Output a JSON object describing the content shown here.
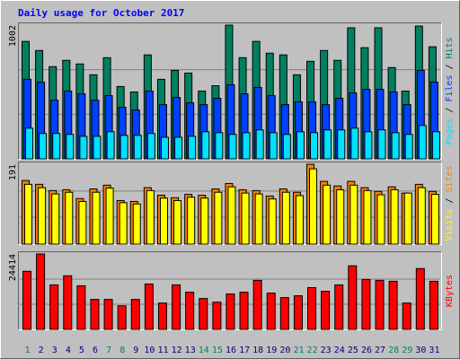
{
  "chart_data": [
    {
      "type": "bar",
      "title": "Daily usage for October 2017",
      "legend_separator": " / ",
      "ylim": [
        0,
        1002
      ],
      "yticks": [
        1002
      ],
      "grid_lines": [
        334,
        668
      ],
      "series": [
        {
          "name": "Hits",
          "color": "#008060",
          "values": [
            880,
            812,
            691,
            738,
            711,
            630,
            758,
            542,
            501,
            779,
            596,
            663,
            643,
            508,
            548,
            1002,
            758,
            880,
            792,
            779,
            630,
            731,
            812,
            738,
            982,
            833,
            982,
            684,
            508,
            995,
            840
          ]
        },
        {
          "name": "Files",
          "color": "#0040ff",
          "values": [
            596,
            575,
            440,
            508,
            487,
            440,
            474,
            386,
            366,
            508,
            406,
            460,
            420,
            406,
            454,
            555,
            487,
            535,
            474,
            406,
            427,
            427,
            406,
            454,
            494,
            521,
            521,
            501,
            406,
            663,
            575
          ]
        },
        {
          "name": "Pages",
          "color": "#00e0ff",
          "values": [
            230,
            190,
            190,
            183,
            169,
            169,
            203,
            176,
            176,
            190,
            162,
            162,
            169,
            203,
            196,
            183,
            196,
            217,
            196,
            183,
            203,
            196,
            217,
            217,
            230,
            203,
            217,
            196,
            183,
            250,
            203
          ]
        }
      ]
    },
    {
      "type": "bar",
      "ylim": [
        0,
        191
      ],
      "yticks": [
        191
      ],
      "grid_lines": [
        64,
        127
      ],
      "series": [
        {
          "name": "Sites",
          "color": "#ff8000",
          "values": [
            152,
            143,
            128,
            130,
            109,
            132,
            141,
            104,
            102,
            135,
            117,
            111,
            119,
            117,
            132,
            145,
            130,
            128,
            115,
            132,
            124,
            191,
            150,
            139,
            150,
            135,
            126,
            137,
            122,
            143,
            126
          ]
        },
        {
          "name": "Visits",
          "color": "#ffff00",
          "values": [
            143,
            135,
            120,
            124,
            102,
            124,
            134,
            99,
            96,
            128,
            110,
            104,
            112,
            110,
            124,
            137,
            122,
            120,
            108,
            124,
            116,
            180,
            141,
            130,
            141,
            128,
            118,
            130,
            122,
            135,
            119
          ]
        }
      ]
    },
    {
      "type": "bar",
      "ylim": [
        0,
        24414
      ],
      "yticks": [
        24414
      ],
      "grid_lines": [
        8138,
        16276
      ],
      "categories": [
        "1",
        "2",
        "3",
        "4",
        "5",
        "6",
        "7",
        "8",
        "9",
        "10",
        "11",
        "12",
        "13",
        "14",
        "15",
        "16",
        "17",
        "18",
        "19",
        "20",
        "21",
        "22",
        "23",
        "24",
        "25",
        "26",
        "27",
        "28",
        "29",
        "30",
        "31"
      ],
      "category_colors": [
        "#008060",
        "#000080",
        "#000080",
        "#000080",
        "#000080",
        "#000080",
        "#008060",
        "#008060",
        "#000080",
        "#000080",
        "#000080",
        "#000080",
        "#000080",
        "#008060",
        "#008060",
        "#000080",
        "#000080",
        "#000080",
        "#000080",
        "#000080",
        "#008060",
        "#008060",
        "#000080",
        "#000080",
        "#000080",
        "#000080",
        "#000080",
        "#008060",
        "#008060",
        "#000080",
        "#000080"
      ],
      "series": [
        {
          "name": "KBytes",
          "color": "#ff0000",
          "values": [
            18816,
            24414,
            14406,
            17346,
            14112,
            9702,
            9702,
            7644,
            9702,
            14700,
            8526,
            14406,
            12054,
            9996,
            8820,
            11466,
            12054,
            15876,
            11760,
            10290,
            10878,
            13524,
            12348,
            14406,
            20580,
            16170,
            15876,
            15582,
            8526,
            19698,
            15582
          ]
        }
      ]
    }
  ]
}
